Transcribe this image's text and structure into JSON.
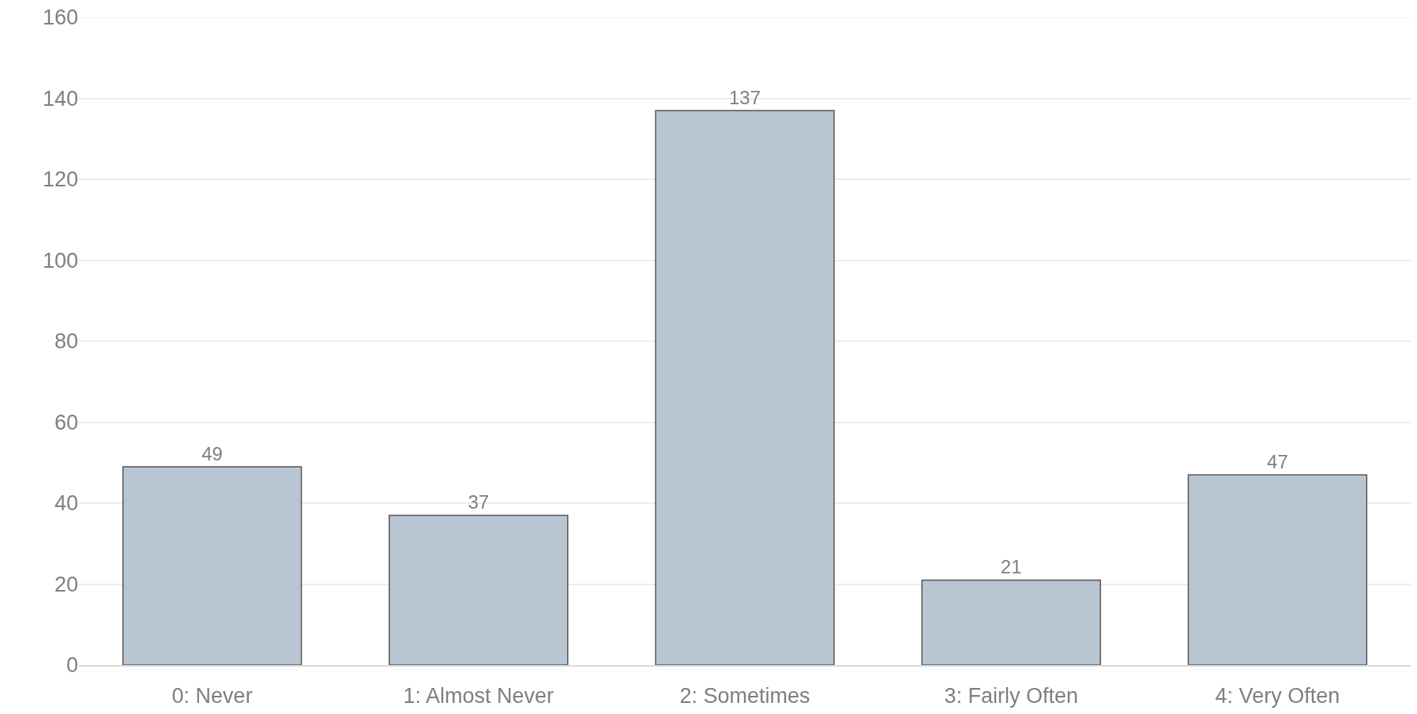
{
  "chart_data": {
    "type": "bar",
    "categories": [
      "0: Never",
      "1: Almost Never",
      "2: Sometimes",
      "3: Fairly Often",
      "4: Very Often"
    ],
    "values": [
      49,
      37,
      137,
      21,
      47
    ],
    "color": "#b7c6d2",
    "ylim": [
      0,
      160
    ],
    "yticks": [
      0,
      20,
      40,
      60,
      80,
      100,
      120,
      140,
      160
    ],
    "grid": "y",
    "data_labels": true
  }
}
